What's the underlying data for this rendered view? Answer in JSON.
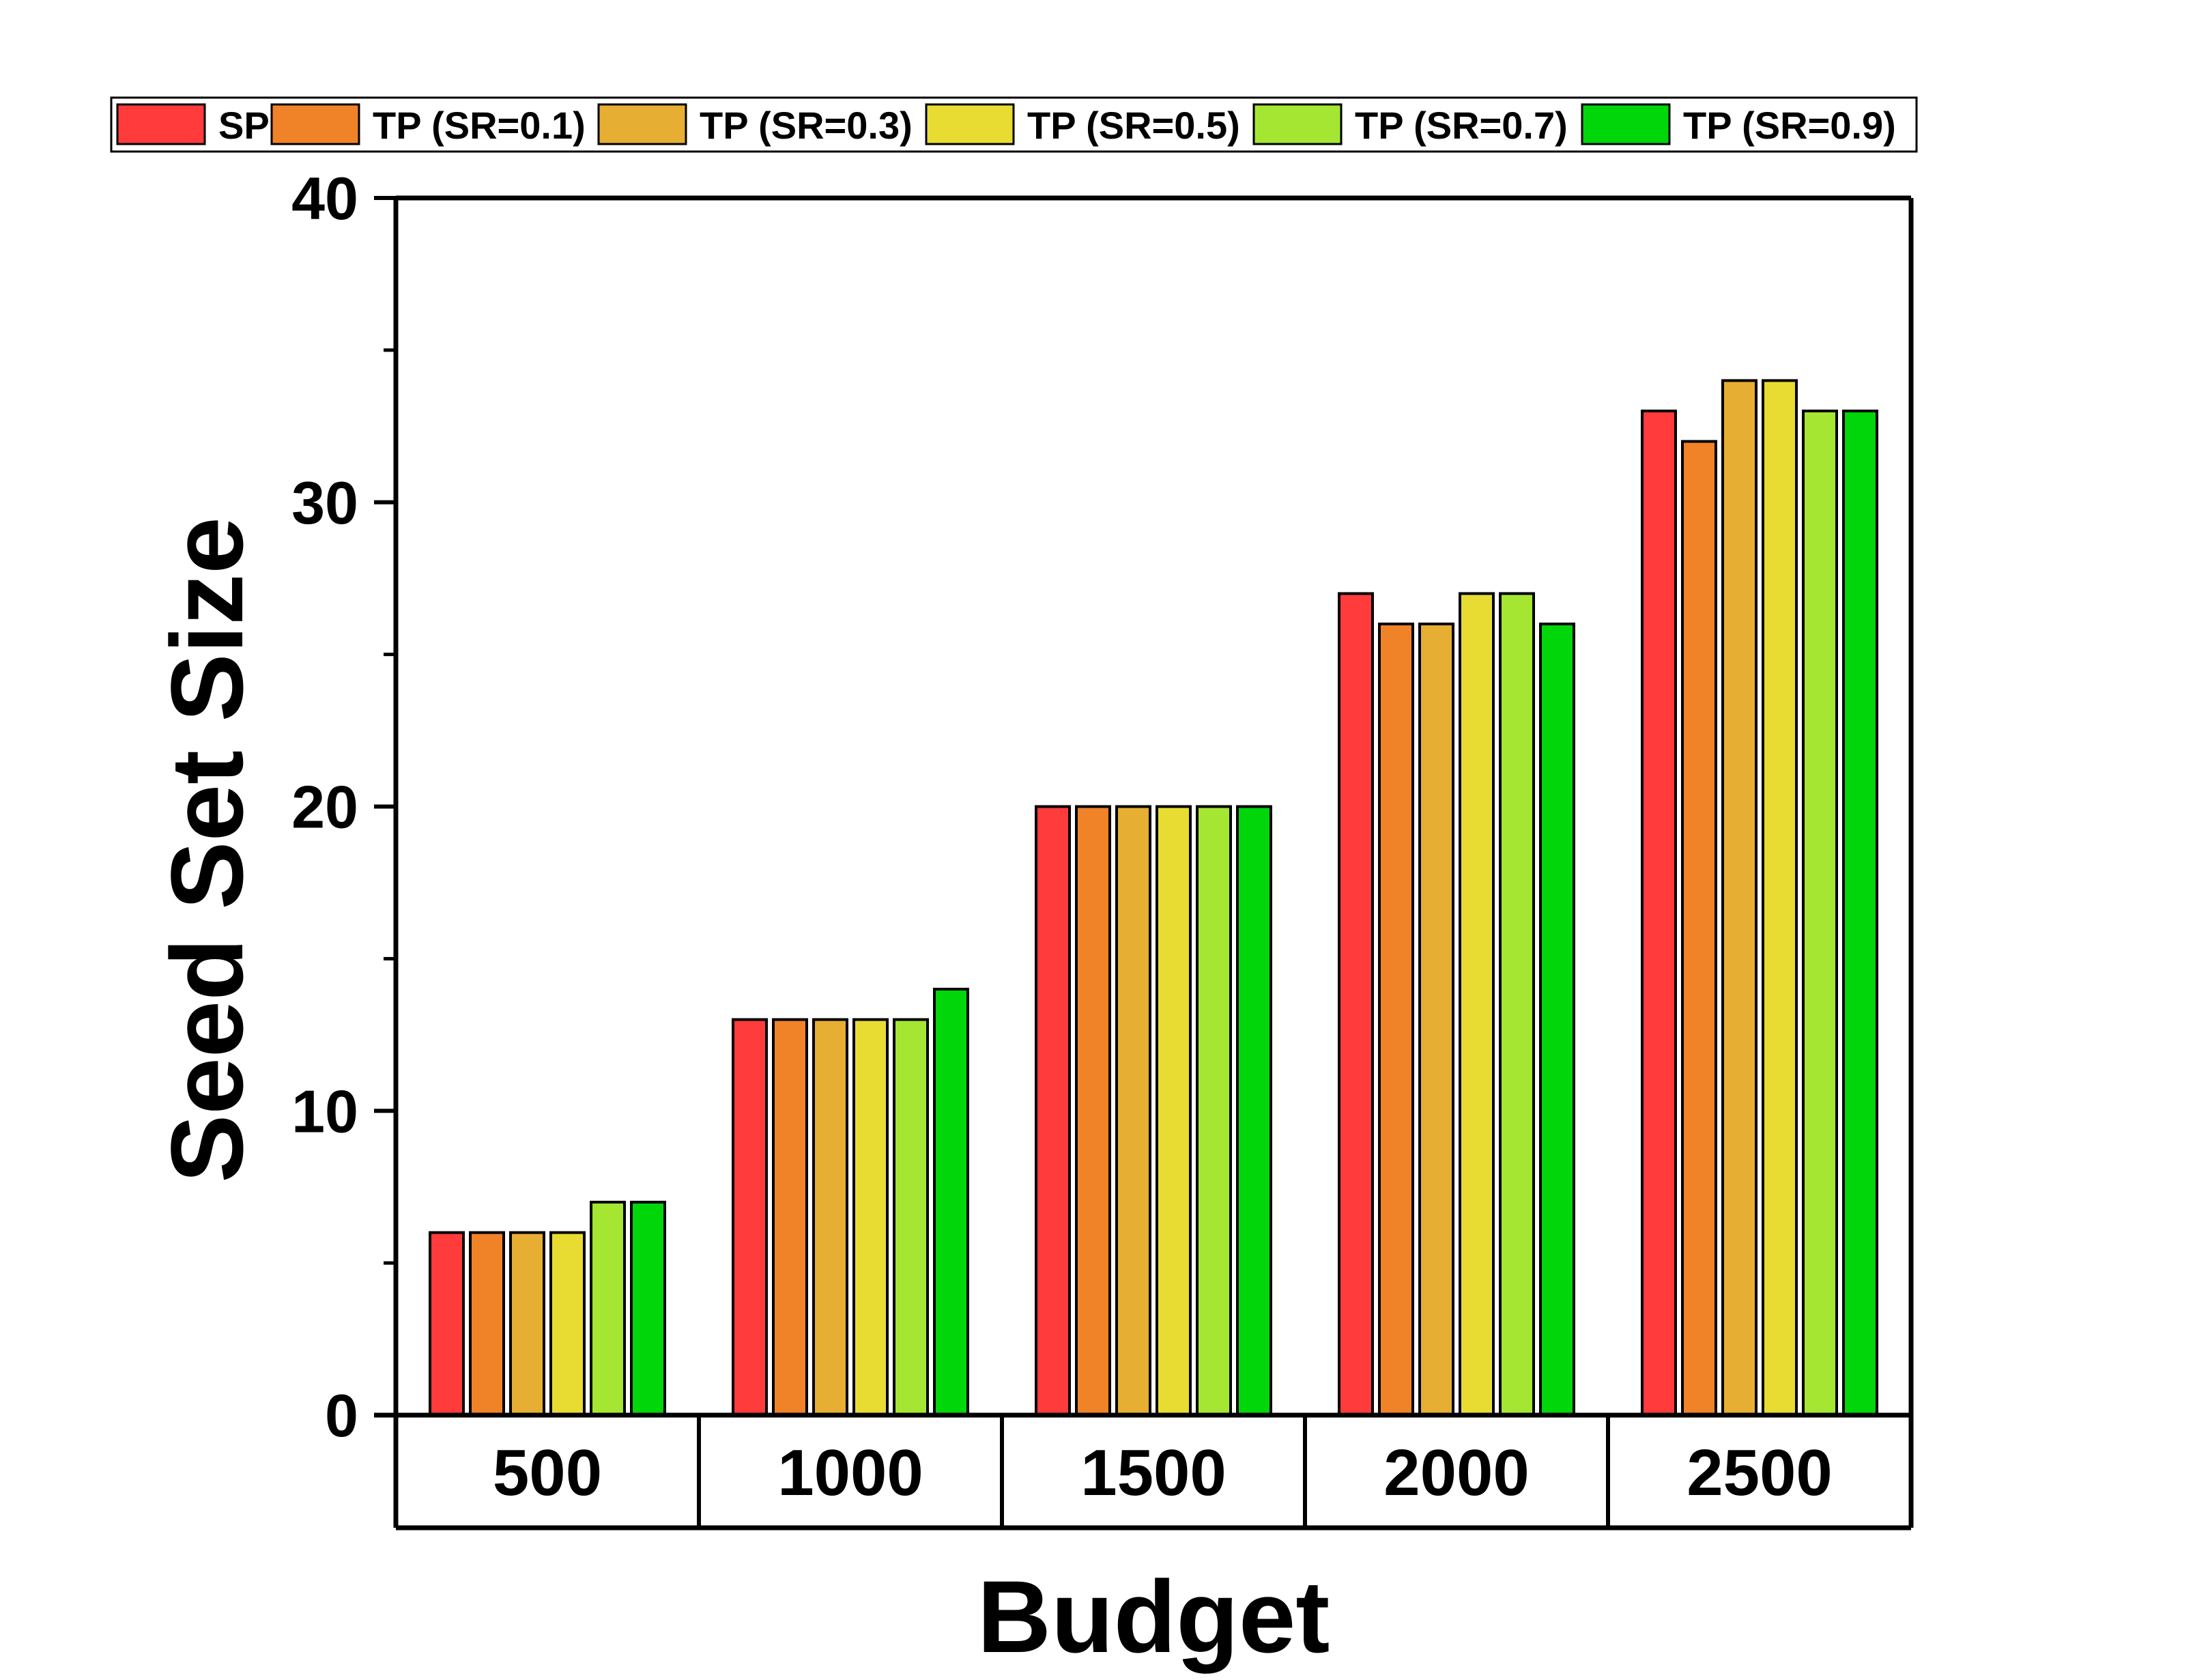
{
  "chart_data": {
    "type": "bar",
    "xlabel": "Budget",
    "ylabel": "Seed Set Size",
    "ylim": [
      0,
      40
    ],
    "yticks": [
      0,
      10,
      20,
      30,
      40
    ],
    "categories": [
      "500",
      "1000",
      "1500",
      "2000",
      "2500"
    ],
    "legend_position": "top",
    "series": [
      {
        "name": "SP",
        "color": "#FF3B3B",
        "values": [
          6,
          13,
          20,
          27,
          33
        ]
      },
      {
        "name": "TP (SR=0.1)",
        "color": "#F08228",
        "values": [
          6,
          13,
          20,
          26,
          32
        ]
      },
      {
        "name": "TP (SR=0.3)",
        "color": "#E6AE32",
        "values": [
          6,
          13,
          20,
          26,
          34
        ]
      },
      {
        "name": "TP (SR=0.5)",
        "color": "#E8DC32",
        "values": [
          6,
          13,
          20,
          27,
          34
        ]
      },
      {
        "name": "TP (SR=0.7)",
        "color": "#A5E632",
        "values": [
          7,
          13,
          20,
          27,
          33
        ]
      },
      {
        "name": "TP (SR=0.9)",
        "color": "#00D60A",
        "values": [
          7,
          14,
          20,
          26,
          33
        ]
      }
    ]
  }
}
